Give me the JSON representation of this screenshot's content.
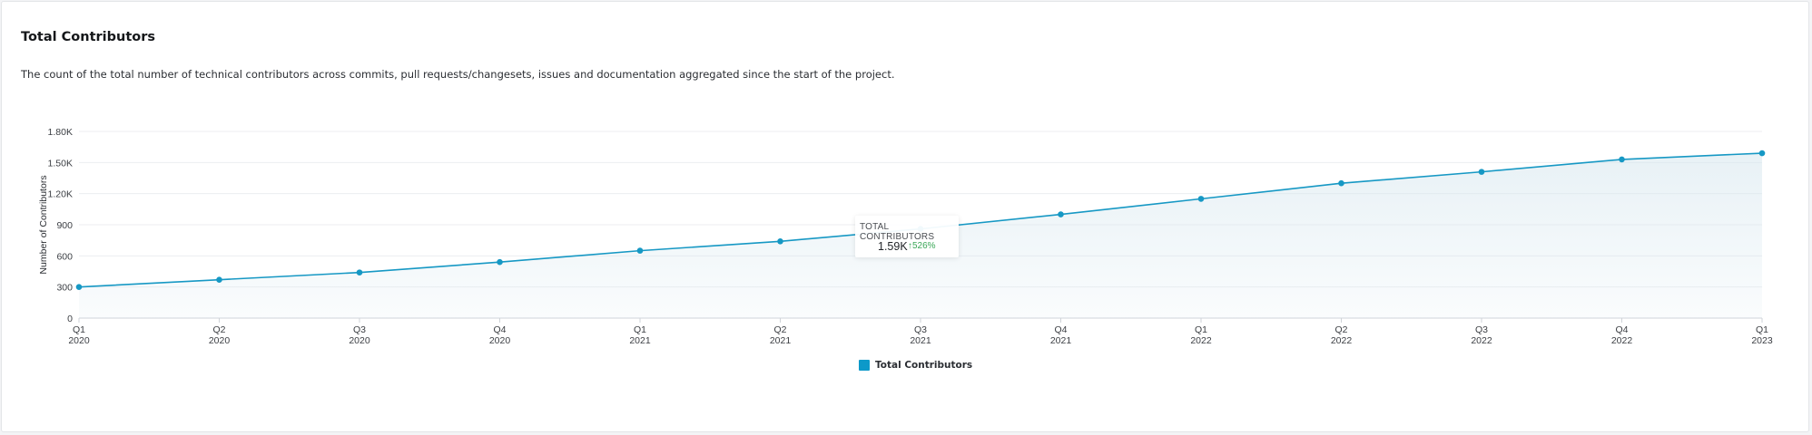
{
  "card": {
    "title": "Total Contributors",
    "description": "The count of the total number of technical contributors across commits, pull requests/changesets, issues and documentation aggregated since the start of the project."
  },
  "tooltip": {
    "label": "TOTAL CONTRIBUTORS",
    "value": "1.59K",
    "change": "↑526%"
  },
  "colors": {
    "line": "#1698c4",
    "area": "#d5e6ee",
    "grid": "#eceef1",
    "legend": "#0d99c9",
    "change": "#3aa757"
  },
  "chart_data": {
    "type": "area",
    "ylabel": "Number of Contributors",
    "ylim": [
      0,
      1800
    ],
    "yticks": [
      0,
      300,
      600,
      900,
      1200,
      1500,
      1800
    ],
    "ytick_labels": [
      "0",
      "300",
      "600",
      "900",
      "1.20K",
      "1.50K",
      "1.80K"
    ],
    "categories": [
      [
        "Q1",
        "2020"
      ],
      [
        "Q2",
        "2020"
      ],
      [
        "Q3",
        "2020"
      ],
      [
        "Q4",
        "2020"
      ],
      [
        "Q1",
        "2021"
      ],
      [
        "Q2",
        "2021"
      ],
      [
        "Q3",
        "2021"
      ],
      [
        "Q4",
        "2021"
      ],
      [
        "Q1",
        "2022"
      ],
      [
        "Q2",
        "2022"
      ],
      [
        "Q3",
        "2022"
      ],
      [
        "Q4",
        "2022"
      ],
      [
        "Q1",
        "2023"
      ]
    ],
    "series": [
      {
        "name": "Total Contributors",
        "values": [
          300,
          370,
          440,
          540,
          650,
          740,
          860,
          1000,
          1150,
          1300,
          1410,
          1530,
          1590
        ]
      }
    ],
    "legend_position": "bottom-center",
    "grid": true
  }
}
